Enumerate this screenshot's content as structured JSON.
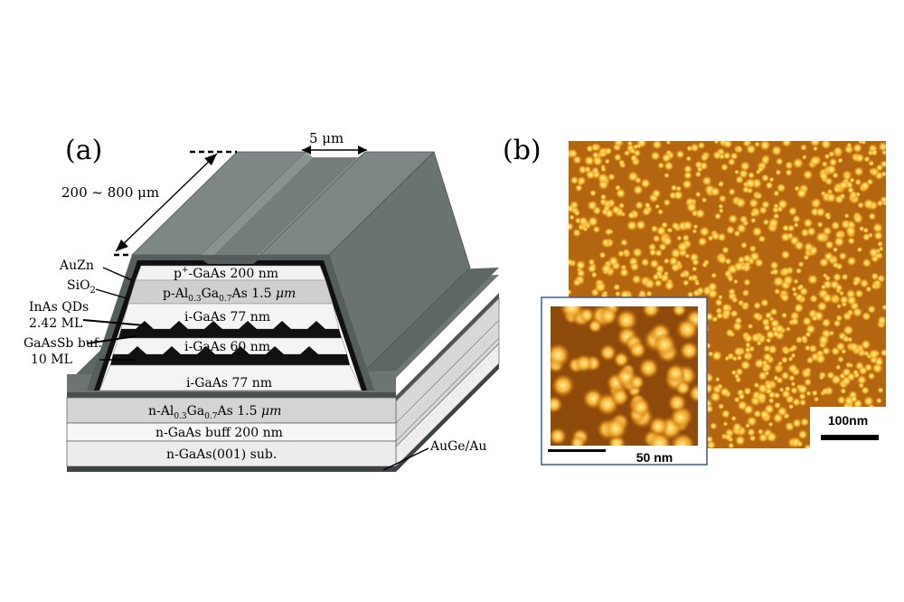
{
  "panel_a": {
    "label": "(a)",
    "dim_width": "5 μm",
    "dim_length": "200 ~ 800 μm",
    "callouts": {
      "auzn": "AuZn",
      "sio2": "SiO",
      "sio2_sub": "2",
      "inas_1": "InAs  QDs",
      "inas_2": "2.42 ML",
      "gaassb_1": "GaAsSb buf.",
      "gaassb_2": "10 ML",
      "auge": "AuGe/Au"
    },
    "layers": {
      "p_gaas": {
        "prefix": "p",
        "sup": "+",
        "main": "-GaAs    200 nm"
      },
      "p_algaas": {
        "a": "p-Al",
        "s1": "0.3",
        "b": "Ga",
        "s2": "0.7",
        "c": "As    1.5 ",
        "unit": "μm"
      },
      "i_gaas_top": "i-GaAs 77 nm",
      "i_gaas_mid": "i-GaAs 60 nm",
      "i_gaas_bot": "i-GaAs 77 nm",
      "n_algaas": {
        "a": "n-Al",
        "s1": "0.3",
        "b": "Ga",
        "s2": "0.7",
        "c": "As    1.5 ",
        "unit": "μm"
      },
      "n_buff": "n-GaAs buff    200 nm",
      "substrate": "n-GaAs(001) sub."
    }
  },
  "panel_b": {
    "label": "(b)",
    "scale_main": "100nm",
    "scale_inset": "50 nm"
  },
  "colors": {
    "metal_top": "#737b7b",
    "metal_dark": "#4a5050",
    "afm_base": "#b4650f",
    "afm_dot": "#ffd45a",
    "inset_border": "#3c5a9c"
  }
}
